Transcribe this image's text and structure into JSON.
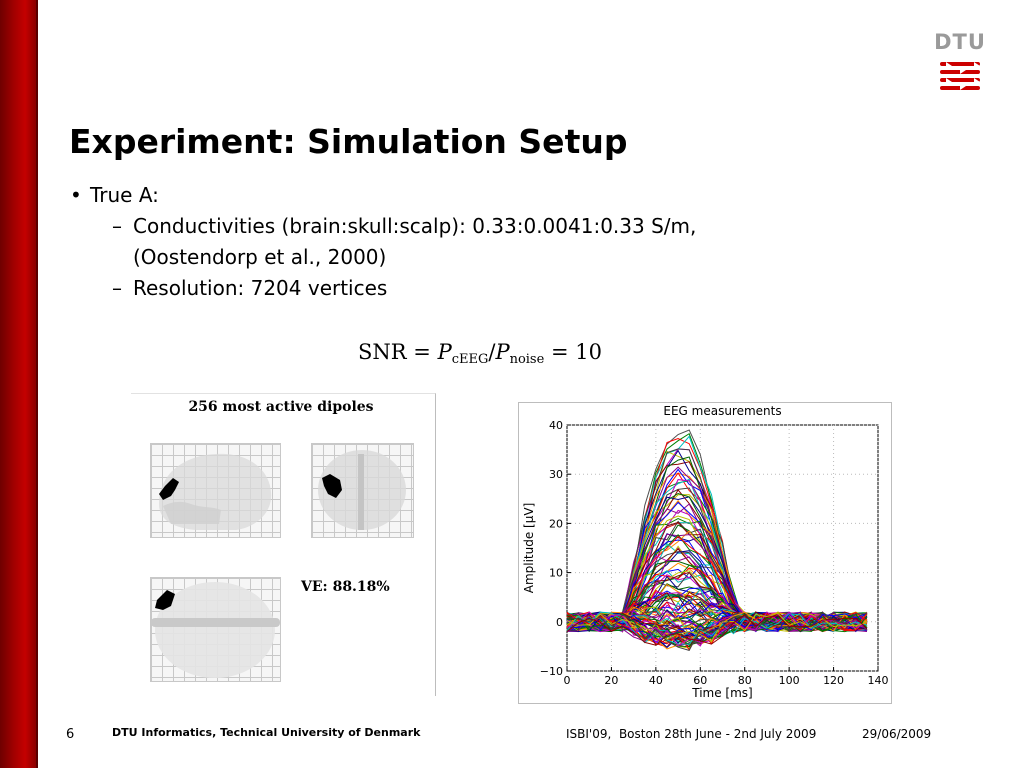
{
  "slide": {
    "title": "Experiment: Simulation Setup",
    "bullet1": "True A:",
    "sub1_line1": "Conductivities (brain:skull:scalp): 0.33:0.0041:0.33 S/m,",
    "sub1_line2": "(Oostendorp et al., 2000)",
    "sub2": "Resolution: 7204 vertices",
    "dash": "–"
  },
  "logo": {
    "text": "DTU",
    "color": "#9a9a9a",
    "accent": "#cc0000"
  },
  "formula": {
    "lhs": "SNR",
    "eq": "=",
    "p": "P",
    "sub1": "cEEG",
    "slash": "/",
    "sub2": "noise",
    "rhs": "= 10"
  },
  "dipoles": {
    "title": "256 most active dipoles",
    "ve_label": "VE: 88.18%"
  },
  "chart_data": {
    "type": "line",
    "title": "EEG measurements",
    "xlabel": "Time [ms]",
    "ylabel": "Amplitude [µV]",
    "xlim": [
      0,
      140
    ],
    "ylim": [
      -10,
      40
    ],
    "xticks": [
      0,
      20,
      40,
      60,
      80,
      100,
      120,
      140
    ],
    "yticks": [
      -10,
      0,
      10,
      20,
      30,
      40
    ],
    "x": [
      0,
      5,
      10,
      15,
      20,
      25,
      30,
      35,
      40,
      45,
      50,
      55,
      60,
      65,
      70,
      75,
      80,
      85,
      90,
      95,
      100,
      105,
      110,
      115,
      120,
      125,
      130,
      135
    ],
    "grid": true,
    "n_series": 128,
    "peak_max": 39,
    "peak_min": -4,
    "peak_time": 50
  },
  "footer": {
    "page": "6",
    "institution": "DTU Informatics, Technical University of Denmark",
    "conference": "ISBI'09,  Boston 28th June - 2nd July 2009",
    "date": "29/06/2009"
  }
}
